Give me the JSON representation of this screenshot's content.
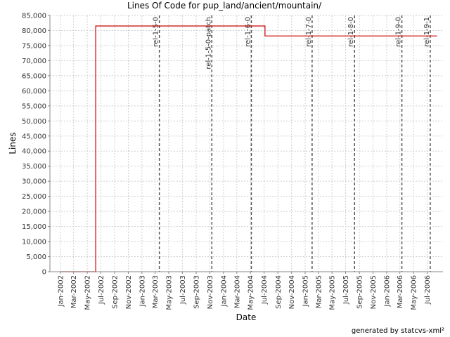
{
  "chart_data": {
    "type": "line",
    "title": "Lines Of Code for pup_land/ancient/mountain/",
    "xlabel": "Date",
    "ylabel": "Lines",
    "footer": "generated by statcvs-xml²",
    "ylim": [
      0,
      85000
    ],
    "xlim": [
      "2001-11-15",
      "2006-09-10"
    ],
    "y_ticks": [
      0,
      5000,
      10000,
      15000,
      20000,
      25000,
      30000,
      35000,
      40000,
      45000,
      50000,
      55000,
      60000,
      65000,
      70000,
      75000,
      80000,
      85000
    ],
    "y_tick_labels": [
      "0",
      "5,000",
      "10,000",
      "15,000",
      "20,000",
      "25,000",
      "30,000",
      "35,000",
      "40,000",
      "45,000",
      "50,000",
      "55,000",
      "60,000",
      "65,000",
      "70,000",
      "75,000",
      "80,000",
      "85,000"
    ],
    "x_ticks": [
      "2002-01-01",
      "2002-03-01",
      "2002-05-01",
      "2002-07-01",
      "2002-09-01",
      "2002-11-01",
      "2003-01-01",
      "2003-03-01",
      "2003-05-01",
      "2003-07-01",
      "2003-09-01",
      "2003-11-01",
      "2004-01-01",
      "2004-03-01",
      "2004-05-01",
      "2004-07-01",
      "2004-09-01",
      "2004-11-01",
      "2005-01-01",
      "2005-03-01",
      "2005-05-01",
      "2005-07-01",
      "2005-09-01",
      "2005-11-01",
      "2006-01-01",
      "2006-03-01",
      "2006-05-01",
      "2006-07-01"
    ],
    "x_tick_labels": [
      "Jan-2002",
      "Mar-2002",
      "May-2002",
      "Jul-2002",
      "Sep-2002",
      "Nov-2002",
      "Jan-2003",
      "Mar-2003",
      "May-2003",
      "Jul-2003",
      "Sep-2003",
      "Nov-2003",
      "Jan-2004",
      "Mar-2004",
      "May-2004",
      "Jul-2004",
      "Sep-2004",
      "Nov-2004",
      "Jan-2005",
      "Mar-2005",
      "May-2005",
      "Jul-2005",
      "Sep-2005",
      "Nov-2005",
      "Jan-2006",
      "Mar-2006",
      "May-2006",
      "Jul-2006"
    ],
    "grid": true,
    "series": [
      {
        "color": "#cc0000",
        "x": [
          "2002-01-01",
          "2002-06-08",
          "2002-06-08",
          "2004-07-05",
          "2004-07-05",
          "2006-08-15"
        ],
        "y": [
          0,
          0,
          81500,
          81500,
          78200,
          78200
        ]
      }
    ],
    "markers": [
      {
        "label": "rel-1-5-0",
        "date": "2003-03-20"
      },
      {
        "label": "rel-1-5-0-patch",
        "date": "2003-11-10"
      },
      {
        "label": "rel-1-6-0",
        "date": "2004-05-05"
      },
      {
        "label": "rel-1-7-0",
        "date": "2005-02-01"
      },
      {
        "label": "rel-1-8-0",
        "date": "2005-08-10"
      },
      {
        "label": "rel-1-9-0",
        "date": "2006-03-10"
      },
      {
        "label": "rel-1-9-1",
        "date": "2006-07-15"
      }
    ],
    "colors": {
      "line": "#cc0000",
      "grid": "#d0d0d0",
      "marker": "#555555",
      "axis": "#888888",
      "background": "#ffffff"
    }
  }
}
